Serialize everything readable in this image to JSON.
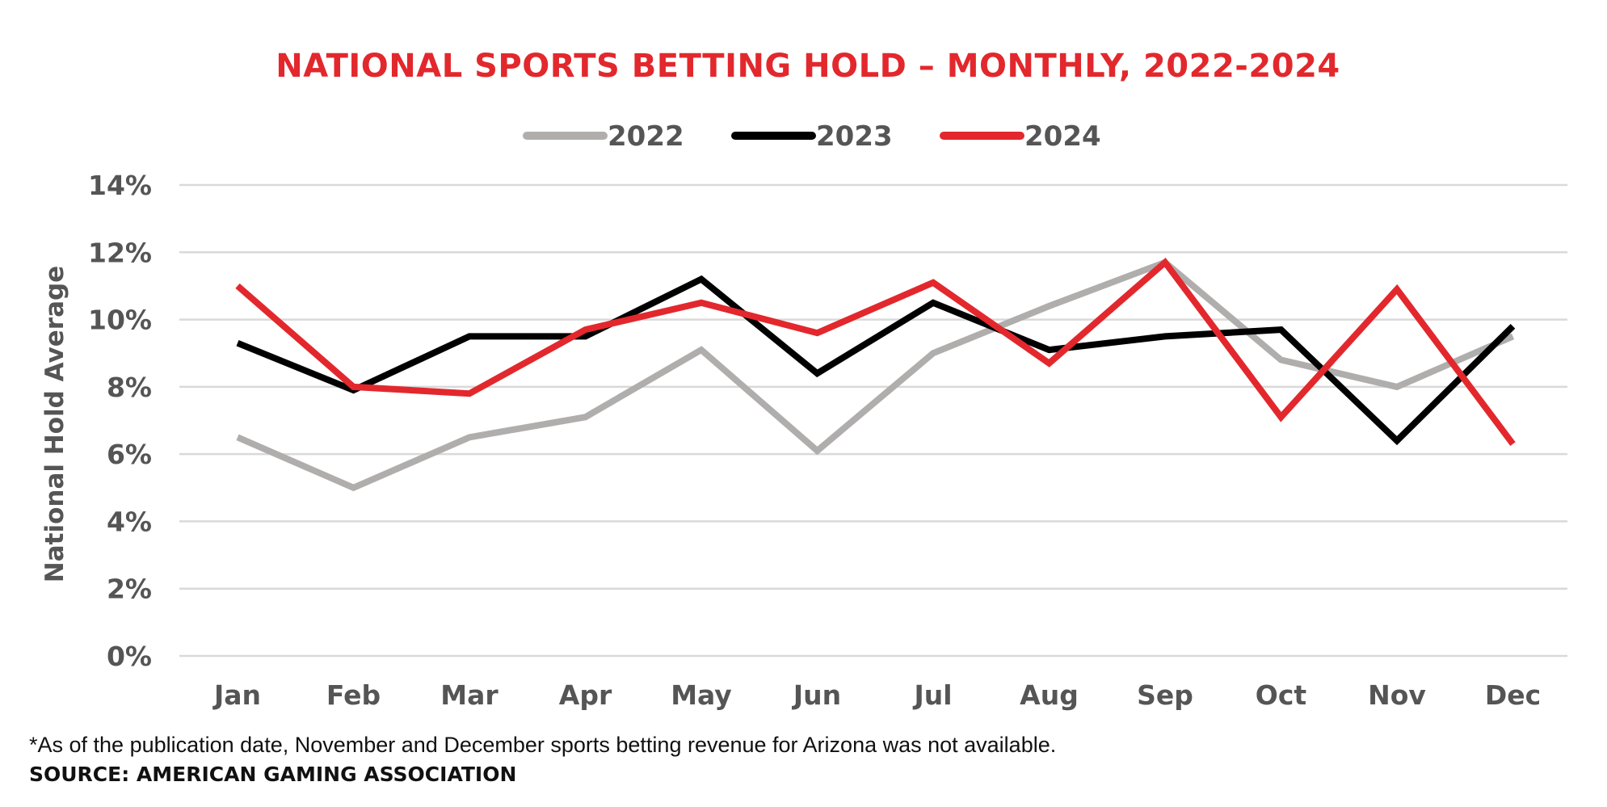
{
  "chart_data": {
    "type": "line",
    "title": "NATIONAL SPORTS BETTING HOLD – MONTHLY, 2022-2024",
    "ylabel": "National Hold Average",
    "xlabel": "",
    "categories": [
      "Jan",
      "Feb",
      "Mar",
      "Apr",
      "May",
      "Jun",
      "Jul",
      "Aug",
      "Sep",
      "Oct",
      "Nov",
      "Dec"
    ],
    "yticks": [
      "0%",
      "2%",
      "4%",
      "6%",
      "8%",
      "10%",
      "12%",
      "14%"
    ],
    "ylim": [
      0,
      14
    ],
    "grid": true,
    "legend_position": "top-center",
    "series": [
      {
        "name": "2022",
        "color": "#b0adad",
        "values": [
          6.5,
          5.0,
          6.5,
          7.1,
          9.1,
          6.1,
          9.0,
          10.4,
          11.7,
          8.8,
          8.0,
          9.5
        ]
      },
      {
        "name": "2023",
        "color": "#000000",
        "values": [
          9.3,
          7.9,
          9.5,
          9.5,
          11.2,
          8.4,
          10.5,
          9.1,
          9.5,
          9.7,
          6.4,
          9.8
        ]
      },
      {
        "name": "2024",
        "color": "#e2282d",
        "values": [
          11.0,
          8.0,
          7.8,
          9.7,
          10.5,
          9.6,
          11.1,
          8.7,
          11.7,
          7.1,
          10.9,
          6.3
        ]
      }
    ]
  },
  "colors": {
    "title": "#e2282d",
    "grid": "#d9d9d9",
    "text": "#555555"
  },
  "footnote": "*As of the publication date, November and December sports betting revenue for Arizona was not available.",
  "source": "SOURCE: AMERICAN GAMING ASSOCIATION"
}
